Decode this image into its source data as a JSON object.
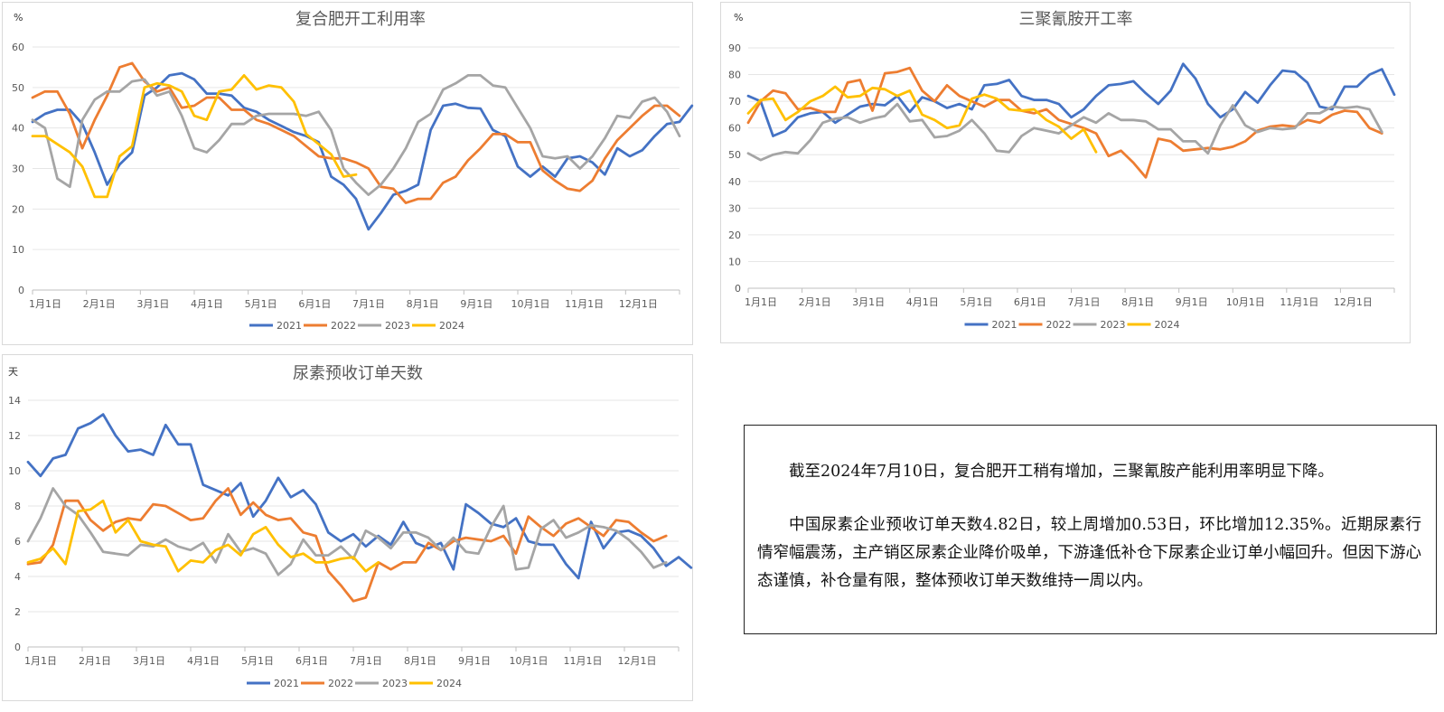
{
  "colors": {
    "2021": "#4472C4",
    "2022": "#ED7D31",
    "2023": "#A5A5A5",
    "2024": "#FFC000"
  },
  "chart_data": [
    {
      "type": "line",
      "title": "复合肥开工利用率",
      "unit": "%",
      "ylim": [
        0,
        60
      ],
      "yticks": [
        0,
        10,
        20,
        30,
        40,
        50,
        60
      ],
      "xticks": [
        "1月1日",
        "2月1日",
        "3月1日",
        "4月1日",
        "5月1日",
        "6月1日",
        "7月1日",
        "8月1日",
        "9月1日",
        "10月1日",
        "11月1日",
        "12月1日"
      ],
      "series": [
        {
          "name": "2021",
          "values": [
            41.5,
            43.5,
            44.5,
            44.5,
            41,
            34,
            26,
            31,
            34,
            48,
            50,
            53,
            53.5,
            52,
            48.5,
            48.5,
            48,
            45,
            44,
            42,
            40.5,
            39,
            38,
            36.5,
            28,
            26,
            22.5,
            15,
            19,
            23.5,
            24.5,
            26,
            39.5,
            45.5,
            46,
            45,
            44.8,
            39.5,
            38,
            30.5,
            28,
            30.5,
            28,
            32.5,
            33,
            31.5,
            28.5,
            35,
            33,
            34.5,
            38,
            41,
            41.5,
            45.5
          ]
        },
        {
          "name": "2022",
          "values": [
            47.5,
            49,
            49,
            43.5,
            35,
            42,
            48,
            55,
            56,
            51.5,
            49,
            50,
            45,
            45.5,
            47.5,
            47.5,
            44.5,
            44.5,
            42,
            41,
            39.5,
            38,
            35.5,
            33,
            32.5,
            32.5,
            31.5,
            30,
            25.5,
            25,
            21.5,
            22.5,
            22.5,
            26.5,
            28,
            32,
            35,
            38.5,
            38.5,
            36.5,
            36.5,
            29.5,
            27,
            25,
            24.5,
            27,
            32.5,
            37,
            40,
            43,
            45.5,
            45.5,
            43
          ]
        },
        {
          "name": "2023",
          "values": [
            42,
            40,
            27.5,
            25.5,
            42,
            47,
            49,
            49,
            51.5,
            52,
            48,
            49,
            43,
            35,
            34,
            37,
            41,
            41,
            43,
            43.5,
            43.5,
            43.5,
            43,
            44,
            39.5,
            30,
            26.5,
            23.5,
            26,
            30,
            35,
            41.5,
            43.5,
            49.5,
            51,
            53,
            53,
            50.5,
            50,
            45,
            40,
            33,
            32.5,
            33,
            30,
            33,
            37.5,
            43,
            42.5,
            46.5,
            47.5,
            44,
            38
          ]
        },
        {
          "name": "2024",
          "values": [
            38,
            38,
            36,
            34,
            30.5,
            23,
            23,
            33,
            35.5,
            50,
            51,
            50.5,
            49,
            43,
            42,
            49,
            49.5,
            53,
            49.5,
            50.5,
            50,
            46.5,
            38.5,
            36,
            33.5,
            28,
            28.5
          ]
        }
      ]
    },
    {
      "type": "line",
      "title": "三聚氰胺开工率",
      "unit": "%",
      "ylim": [
        0,
        90
      ],
      "yticks": [
        0,
        10,
        20,
        30,
        40,
        50,
        60,
        70,
        80,
        90
      ],
      "xticks": [
        "1月1日",
        "2月1日",
        "3月1日",
        "4月1日",
        "5月1日",
        "6月1日",
        "7月1日",
        "8月1日",
        "9月1日",
        "10月1日",
        "11月1日",
        "12月1日"
      ],
      "series": [
        {
          "name": "2021",
          "values": [
            72,
            70,
            57,
            59,
            64,
            65.5,
            66,
            62,
            65,
            68,
            69,
            68.5,
            72,
            66,
            71.5,
            70,
            67.5,
            69,
            67,
            76,
            76.5,
            78,
            72,
            70.5,
            70.5,
            69,
            64,
            67,
            72,
            76,
            76.5,
            77.5,
            73,
            69,
            74,
            84,
            78.5,
            69,
            64,
            67,
            73.5,
            69.5,
            76,
            81.5,
            81,
            77,
            68,
            67,
            75.5,
            75.5,
            80,
            82,
            72.5
          ]
        },
        {
          "name": "2022",
          "values": [
            62,
            70,
            74,
            73,
            67,
            67.5,
            66,
            66,
            77,
            78,
            66.5,
            80.5,
            81,
            82.5,
            74,
            70,
            76,
            72,
            70,
            68,
            70.5,
            70.5,
            66.5,
            65.5,
            67,
            63,
            61.5,
            60,
            58,
            49.5,
            51.5,
            47,
            41.5,
            56,
            55,
            51.5,
            52,
            52.5,
            52,
            53,
            55,
            59,
            60.5,
            61,
            60.5,
            63,
            62,
            65,
            66.5,
            66,
            60,
            58
          ]
        },
        {
          "name": "2023",
          "values": [
            50.5,
            48,
            50,
            51,
            50.5,
            55.5,
            62,
            63.5,
            64,
            62,
            63.5,
            64.5,
            69,
            62.5,
            63,
            56.5,
            57,
            59,
            63,
            58,
            51.5,
            51,
            57,
            60,
            59,
            58,
            61,
            64,
            62,
            65.5,
            63,
            63,
            62.5,
            59.5,
            59.5,
            55,
            55,
            50.5,
            61,
            68.5,
            61,
            58.5,
            60,
            59.5,
            60,
            65.5,
            65.5,
            68,
            67.5,
            68,
            67,
            58.5
          ]
        },
        {
          "name": "2024",
          "values": [
            65.5,
            70.5,
            71,
            63,
            66,
            70,
            72,
            75.5,
            71.5,
            72,
            75,
            74.5,
            72,
            74,
            65,
            63,
            60,
            61,
            71,
            72.5,
            71,
            67,
            66.5,
            67,
            63,
            60.5,
            56,
            59.5,
            51
          ]
        }
      ]
    },
    {
      "type": "line",
      "title": "尿素预收订单天数",
      "unit": "天",
      "ylim": [
        0,
        14
      ],
      "yticks": [
        0,
        2,
        4,
        6,
        8,
        10,
        12,
        14
      ],
      "xticks": [
        "1月1日",
        "2月1日",
        "3月1日",
        "4月1日",
        "5月1日",
        "6月1日",
        "7月1日",
        "8月1日",
        "9月1日",
        "10月1日",
        "11月1日",
        "12月1日"
      ],
      "series": [
        {
          "name": "2021",
          "values": [
            10.5,
            9.7,
            10.7,
            10.9,
            12.4,
            12.7,
            13.2,
            12,
            11.1,
            11.2,
            10.9,
            12.6,
            11.5,
            11.5,
            9.2,
            8.9,
            8.6,
            9.3,
            7.4,
            8.3,
            9.6,
            8.5,
            8.9,
            8.1,
            6.5,
            6,
            6.4,
            5.7,
            6.3,
            5.8,
            7.1,
            5.9,
            5.6,
            5.9,
            4.4,
            8.1,
            7.6,
            7,
            6.8,
            7.3,
            6,
            5.8,
            5.8,
            4.7,
            3.9,
            7.1,
            5.6,
            6.5,
            6.6,
            6.3,
            5.6,
            4.6,
            5.1,
            4.5
          ]
        },
        {
          "name": "2022",
          "values": [
            4.7,
            4.8,
            5.8,
            8.3,
            8.3,
            7.2,
            6.6,
            7.1,
            7.3,
            7.2,
            8.1,
            8,
            7.6,
            7.2,
            7.3,
            8.3,
            9,
            7.5,
            8.2,
            7.5,
            7.2,
            7.3,
            6.5,
            6.3,
            4.3,
            3.5,
            2.6,
            2.8,
            4.8,
            4.4,
            4.8,
            4.8,
            5.9,
            5.5,
            6,
            6.2,
            6.1,
            6,
            6.3,
            5.3,
            7.4,
            6.8,
            6.3,
            7,
            7.3,
            6.8,
            6.3,
            7.2,
            7.1,
            6.5,
            6,
            6.3
          ]
        },
        {
          "name": "2023",
          "values": [
            6,
            7.3,
            9,
            8,
            7.5,
            6.5,
            5.4,
            5.3,
            5.2,
            5.8,
            5.7,
            6.1,
            5.7,
            5.5,
            5.9,
            4.8,
            6.4,
            5.4,
            5.6,
            5.3,
            4.1,
            4.7,
            6.1,
            5.2,
            5.2,
            5.7,
            5,
            6.6,
            6.2,
            5.6,
            6.5,
            6.5,
            6.2,
            5.5,
            6.2,
            5.4,
            5.3,
            6.8,
            8,
            4.4,
            4.5,
            6.7,
            7.2,
            6.2,
            6.5,
            6.9,
            6.8,
            6.6,
            6.1,
            5.4,
            4.5,
            4.8
          ]
        },
        {
          "name": "2024",
          "values": [
            4.8,
            5,
            5.6,
            4.7,
            7.7,
            7.8,
            8.3,
            6.5,
            7.2,
            6,
            5.8,
            5.7,
            4.3,
            4.9,
            4.8,
            5.5,
            5.8,
            5.2,
            6.4,
            6.8,
            5.8,
            5.1,
            5.3,
            4.8,
            4.8,
            5,
            5.1,
            4.3,
            4.8
          ]
        }
      ]
    }
  ],
  "note": {
    "para1": "截至2024年7月10日，复合肥开工稍有增加，三聚氰胺产能利用率明显下降。",
    "para2": "中国尿素企业预收订单天数4.82日，较上周增加0.53日，环比增加12.35%。近期尿素行情窄幅震荡，主产销区尿素企业降价吸单，下游逢低补仓下尿素企业订单小幅回升。但因下游心态谨慎，补仓量有限，整体预收订单天数维持一周以内。"
  }
}
